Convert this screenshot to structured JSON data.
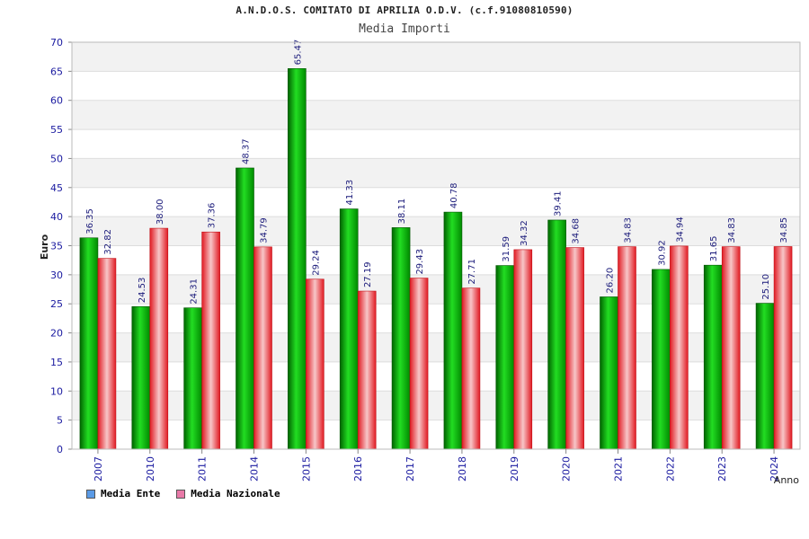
{
  "header": {
    "title": "A.N.D.O.S. COMITATO DI APRILIA O.D.V. (c.f.91080810590)",
    "subtitle": "Media Importi"
  },
  "chart_data": {
    "type": "bar",
    "title": "A.N.D.O.S. COMITATO DI APRILIA O.D.V. (c.f.91080810590)",
    "subtitle": "Media Importi",
    "xlabel": "Anno",
    "ylabel": "Euro",
    "ylim": [
      0,
      70
    ],
    "yticks": [
      0,
      5,
      10,
      15,
      20,
      25,
      30,
      35,
      40,
      45,
      50,
      55,
      60,
      65,
      70
    ],
    "categories": [
      "2007",
      "2010",
      "2011",
      "2014",
      "2015",
      "2016",
      "2017",
      "2018",
      "2019",
      "2020",
      "2021",
      "2022",
      "2023",
      "2024"
    ],
    "series": [
      {
        "name": "Media Ente",
        "color": "#0a9a0a",
        "values": [
          36.35,
          24.53,
          24.31,
          48.37,
          65.47,
          41.33,
          38.11,
          40.78,
          31.59,
          39.41,
          26.2,
          30.92,
          31.65,
          25.1
        ],
        "labels": [
          "36.35",
          "24.53",
          "24.31",
          "48.37",
          "65.47",
          "41.33",
          "38.11",
          "40.78",
          "31.59",
          "39.41",
          "26.20",
          "30.92",
          "31.65",
          "25.10"
        ]
      },
      {
        "name": "Media Nazionale",
        "color": "#e8262e",
        "values": [
          32.82,
          38.0,
          37.36,
          34.79,
          29.24,
          27.19,
          29.43,
          27.71,
          34.32,
          34.68,
          34.83,
          34.94,
          34.83,
          34.85
        ],
        "labels": [
          "32.82",
          "38.00",
          "37.36",
          "34.79",
          "29.24",
          "27.19",
          "29.43",
          "27.71",
          "34.32",
          "34.68",
          "34.83",
          "34.94",
          "34.83",
          "34.85"
        ]
      }
    ],
    "legend": [
      {
        "label": "Media Ente",
        "swatch_color": "#5b9be6"
      },
      {
        "label": "Media Nazionale",
        "swatch_color": "#e87aa8"
      }
    ],
    "legend_position": "bottom-left",
    "grid": true
  }
}
